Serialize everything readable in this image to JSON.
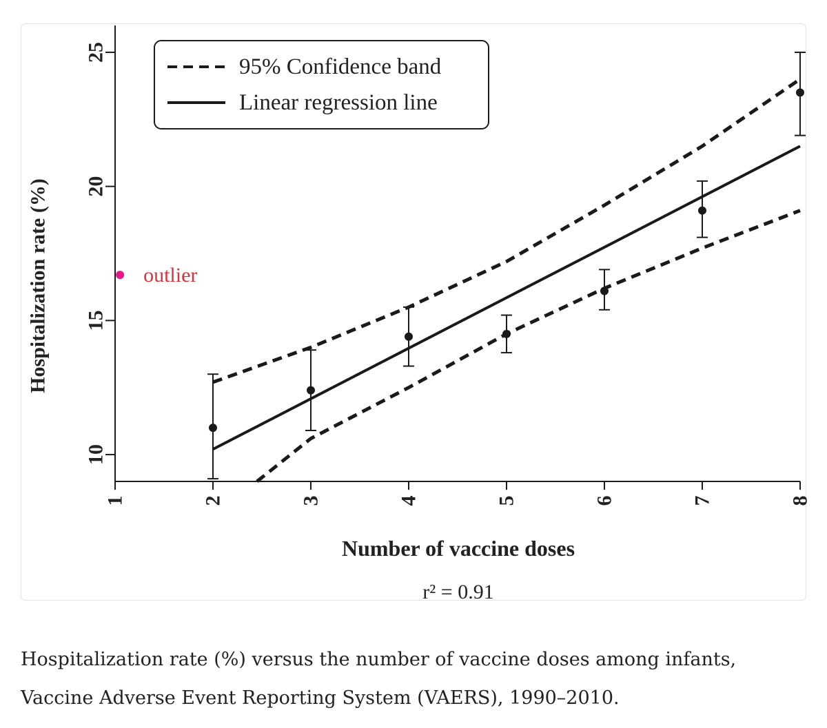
{
  "colors": {
    "ink": "#1a1a1a",
    "outlier": "#e6188a",
    "outlier_label": "#e0303a",
    "card_border": "#e3e3e3"
  },
  "chart_data": {
    "type": "scatter",
    "title": "",
    "xlabel": "Number of vaccine doses",
    "ylabel": "Hospitalization rate (%)",
    "subtitle_stat": "r² = 0.91",
    "xlim": [
      1,
      8
    ],
    "ylim": [
      9,
      26
    ],
    "xticks": [
      1,
      2,
      3,
      4,
      5,
      6,
      7,
      8
    ],
    "yticks": [
      10,
      15,
      20,
      25
    ],
    "grid": false,
    "legend": {
      "placement": "top-left",
      "entries": [
        {
          "label": "95% Confidence band",
          "style": "dashed"
        },
        {
          "label": "Linear regression line",
          "style": "solid"
        }
      ]
    },
    "points": [
      {
        "x": 2,
        "y": 11.0,
        "err_low": 9.1,
        "err_high": 13.0
      },
      {
        "x": 3,
        "y": 12.4,
        "err_low": 10.9,
        "err_high": 13.9
      },
      {
        "x": 4,
        "y": 14.4,
        "err_low": 13.3,
        "err_high": 15.5
      },
      {
        "x": 5,
        "y": 14.5,
        "err_low": 13.8,
        "err_high": 15.2
      },
      {
        "x": 6,
        "y": 16.1,
        "err_low": 15.4,
        "err_high": 16.9
      },
      {
        "x": 7,
        "y": 19.1,
        "err_low": 18.1,
        "err_high": 20.2
      },
      {
        "x": 8,
        "y": 23.5,
        "err_low": 21.9,
        "err_high": 25.0
      }
    ],
    "regression_line": [
      {
        "x": 2,
        "y": 10.2
      },
      {
        "x": 8,
        "y": 21.5
      }
    ],
    "confidence_band_upper": [
      {
        "x": 2,
        "y": 12.7
      },
      {
        "x": 3,
        "y": 14.0
      },
      {
        "x": 4,
        "y": 15.5
      },
      {
        "x": 5,
        "y": 17.2
      },
      {
        "x": 6,
        "y": 19.3
      },
      {
        "x": 7,
        "y": 21.5
      },
      {
        "x": 8,
        "y": 24.0
      }
    ],
    "confidence_band_lower": [
      {
        "x": 2.45,
        "y": 9.0
      },
      {
        "x": 3,
        "y": 10.6
      },
      {
        "x": 4,
        "y": 12.5
      },
      {
        "x": 5,
        "y": 14.5
      },
      {
        "x": 6,
        "y": 16.2
      },
      {
        "x": 7,
        "y": 17.7
      },
      {
        "x": 8,
        "y": 19.1
      }
    ],
    "annotation": {
      "label": "outlier",
      "x": 1.05,
      "y": 16.7
    }
  },
  "caption": {
    "line1": "Hospitalization rate (%) versus the number of vaccine doses among infants,",
    "line2": "Vaccine Adverse Event Reporting System (VAERS), 1990–2010."
  }
}
